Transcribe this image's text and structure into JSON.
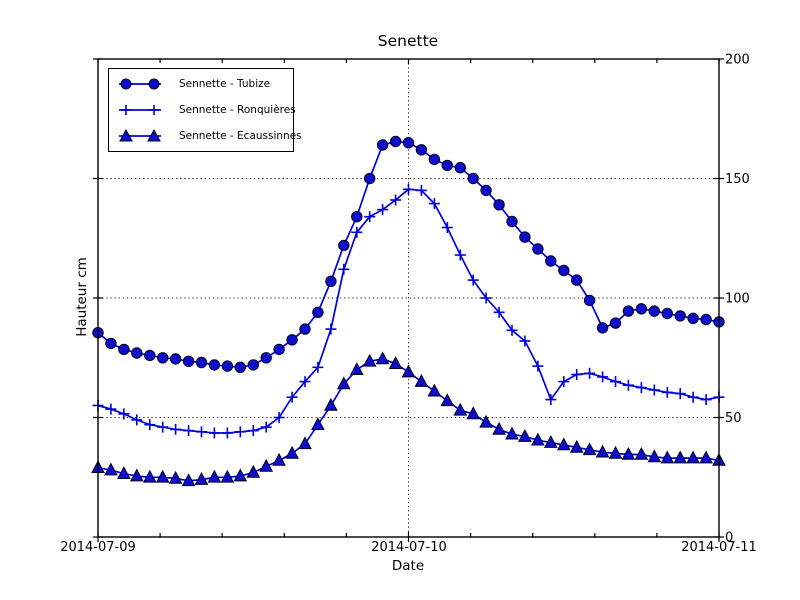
{
  "chart_data": {
    "type": "line",
    "title": "Senette",
    "xlabel": "Date",
    "ylabel": "Hauteur cm",
    "x_axis": {
      "tick_labels": [
        "2014-07-09",
        "2014-07-10",
        "2014-07-11"
      ],
      "tick_hours": [
        0,
        24,
        48
      ],
      "minor_tick_interval_hours": 4.8,
      "lim_hours": [
        0,
        48
      ],
      "unit": "hours from 2014-07-09 00:00, hourly samples"
    },
    "y_axis": {
      "tick_labels": [
        "0",
        "50",
        "100",
        "150",
        "200"
      ],
      "tick_values": [
        0,
        50,
        100,
        150,
        200
      ],
      "lim": [
        0,
        200
      ],
      "labels_side": "right"
    },
    "grid": {
      "style": "dotted",
      "y_values": [
        50,
        100,
        150
      ],
      "x_hours": [
        24
      ]
    },
    "legend_position": "upper-left",
    "style": {
      "line_color": "#0000dd",
      "marker_fill": "#0d0dcc",
      "marker_edge": "#000020",
      "grid_color": "#3c3c3c",
      "axis_color": "#000000"
    },
    "x_start_hour": 0,
    "x_step_hours": 1,
    "series": [
      {
        "name": "Sennette - Tubize",
        "marker": "circle",
        "values": [
          85.5,
          81,
          78.5,
          77,
          76,
          75,
          74.5,
          73.5,
          73,
          72,
          71.5,
          71,
          72,
          75,
          78.5,
          82.5,
          87,
          94,
          107,
          122,
          134,
          150,
          164,
          165.5,
          165,
          162,
          158,
          155.5,
          154.5,
          150,
          145,
          139,
          132,
          125.5,
          120.5,
          115.5,
          111.5,
          107.5,
          99,
          87.5,
          89.5,
          94.5,
          95.5,
          94.5,
          93.5,
          92.5,
          91.5,
          91,
          90
        ]
      },
      {
        "name": "Sennette - Ronquières",
        "marker": "plus",
        "values": [
          55,
          53.5,
          51.5,
          49,
          47,
          46,
          45,
          44.5,
          44,
          43.5,
          43.5,
          44,
          44.5,
          46,
          50,
          58.5,
          65,
          71,
          87,
          112,
          127.5,
          134,
          137,
          141,
          145.5,
          145,
          139.5,
          129.5,
          118,
          107.5,
          100,
          94,
          86.5,
          82,
          71.5,
          57.5,
          65,
          68,
          68.5,
          67,
          65,
          63.5,
          62.5,
          61.5,
          60.5,
          60,
          58.5,
          57.5,
          58.5
        ]
      },
      {
        "name": "Sennette - Ecaussinnes",
        "marker": "triangle-up",
        "values": [
          29,
          28,
          26.5,
          25.5,
          25,
          25,
          24.5,
          23.5,
          24,
          25,
          25,
          25.5,
          27,
          29.5,
          32,
          35,
          39,
          47,
          55,
          64,
          70,
          73.5,
          74.5,
          72.5,
          69,
          65,
          61,
          57,
          53,
          51.5,
          48,
          45,
          43,
          42,
          40.5,
          39.5,
          38.5,
          37.5,
          36.5,
          35.5,
          35,
          34.5,
          34.5,
          33.5,
          33,
          33,
          33,
          33,
          32
        ]
      }
    ]
  }
}
